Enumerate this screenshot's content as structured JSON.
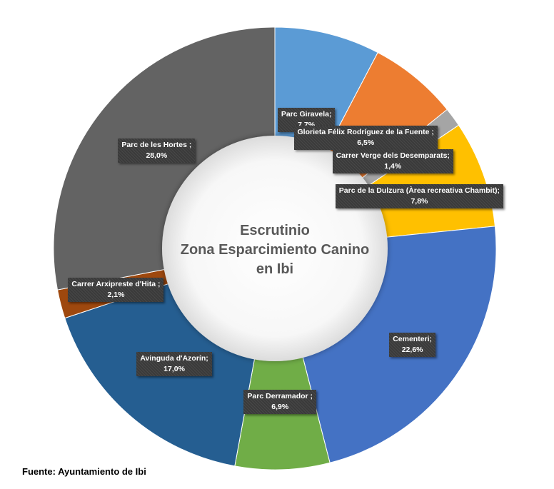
{
  "center_title": [
    "Escrutinio",
    "Zona Esparcimiento Canino",
    "en Ibi"
  ],
  "source": "Fuente: Ayuntamiento de Ibi",
  "chart_data": {
    "type": "pie",
    "title": "Escrutinio Zona Esparcimiento Canino en Ibi",
    "hole": true,
    "slices": [
      {
        "name": "Parc Giravela;",
        "value": 7.7,
        "value_label": "7,7%",
        "color": "#5b9bd5"
      },
      {
        "name": "Glorieta Félix Rodríguez de la Fuente ;",
        "value": 6.5,
        "value_label": "6,5%",
        "color": "#ed7d31"
      },
      {
        "name": "Carrer Verge dels Desemparats;",
        "value": 1.4,
        "value_label": "1,4%",
        "color": "#a5a5a5"
      },
      {
        "name": "Parc de la Dulzura (Àrea recreativa Chambit);",
        "value": 7.8,
        "value_label": "7,8%",
        "color": "#ffc000"
      },
      {
        "name": "Cementeri;",
        "value": 22.6,
        "value_label": "22,6%",
        "color": "#4472c4"
      },
      {
        "name": "Parc Derramador ;",
        "value": 6.9,
        "value_label": "6,9%",
        "color": "#70ad47"
      },
      {
        "name": "Avinguda d'Azorín;",
        "value": 17.0,
        "value_label": "17,0%",
        "color": "#255e91"
      },
      {
        "name": "Carrer Arxipreste d'Hita ;",
        "value": 2.1,
        "value_label": "2,1%",
        "color": "#9e480e"
      },
      {
        "name": "Parc de les Hortes ;",
        "value": 28.0,
        "value_label": "28,0%",
        "color": "#636363"
      }
    ]
  }
}
